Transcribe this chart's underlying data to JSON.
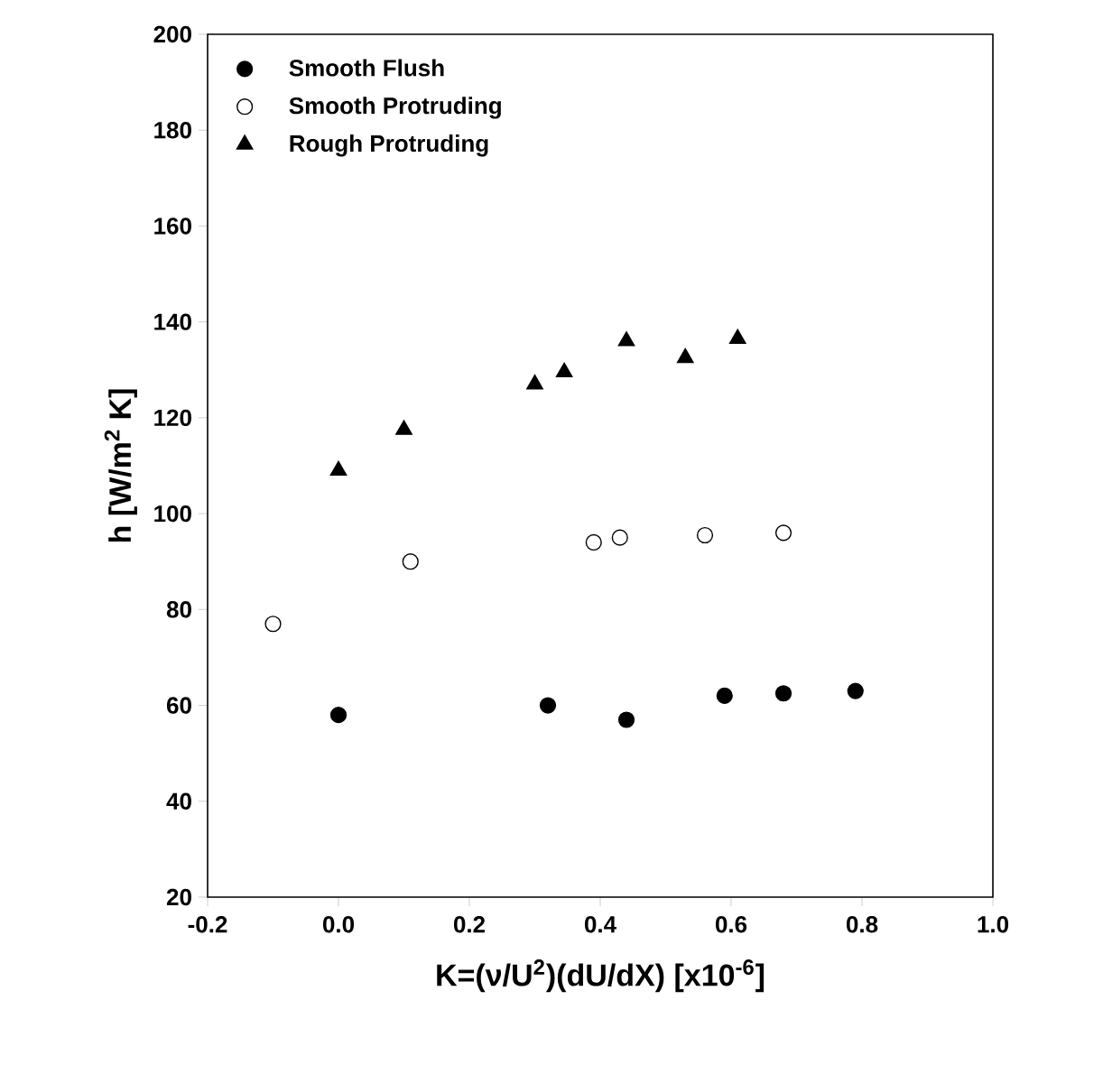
{
  "chart_data": {
    "type": "scatter",
    "xlabel": "K=(ν/U$^{2}$)(dU/dX)        [x10$^{-6}$]",
    "ylabel": "h [W/m$^{2}$ K]",
    "xlim": [
      -0.2,
      1.0
    ],
    "xticks": [
      {
        "value": -0.2,
        "label": "-0.2"
      },
      {
        "value": 0,
        "label": "0.0"
      },
      {
        "value": 0.2,
        "label": "0.2"
      },
      {
        "value": 0.4,
        "label": "0.4"
      },
      {
        "value": 0.6,
        "label": "0.6"
      },
      {
        "value": 0.8,
        "label": "0.8"
      },
      {
        "value": 1.0,
        "label": "1.0"
      }
    ],
    "ylim": [
      20,
      200
    ],
    "yticks": [
      20,
      40,
      60,
      80,
      100,
      120,
      140,
      160,
      180,
      200
    ],
    "legend": "top left",
    "grid": false,
    "series": [
      {
        "name": "Smooth Flush",
        "color": "#000000",
        "marker": "circle",
        "x": [
          0.0,
          0.32,
          0.44,
          0.59,
          0.68,
          0.79
        ],
        "values": [
          58,
          60,
          57,
          62,
          62.5,
          63
        ]
      },
      {
        "name": "Smooth Protruding",
        "color": "#ffffff",
        "marker": "circle",
        "x": [
          -0.1,
          0.11,
          0.39,
          0.43,
          0.56,
          0.68
        ],
        "values": [
          77,
          90,
          94,
          95,
          95.5,
          96
        ]
      },
      {
        "name": "Rough Protruding",
        "color": "#000000",
        "marker": "triangle",
        "x": [
          0.0,
          0.1,
          0.3,
          0.345,
          0.44,
          0.53,
          0.61
        ],
        "values": [
          109,
          117.5,
          127,
          129.5,
          136,
          132.5,
          136.5
        ]
      }
    ]
  }
}
